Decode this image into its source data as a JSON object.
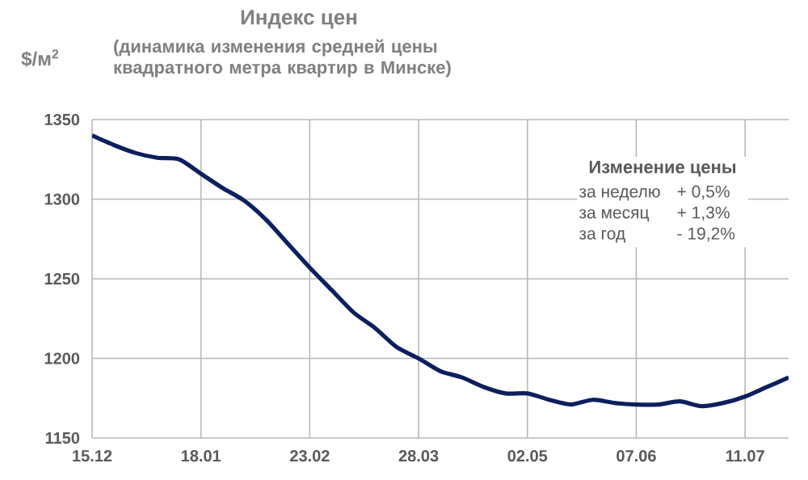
{
  "chart_data": {
    "type": "line",
    "title": "Индекс цен",
    "subtitle": "(динамика изменения средней цены квадратного метра квартир в Минске)",
    "ylabel": "$/м$^{2}$",
    "categories": [
      "15.12",
      null,
      null,
      null,
      null,
      "18.01",
      null,
      null,
      null,
      null,
      "23.02",
      null,
      null,
      null,
      null,
      "28.03",
      null,
      null,
      null,
      null,
      "02.05",
      null,
      null,
      null,
      null,
      "07.06",
      null,
      null,
      null,
      null,
      "11.07",
      null,
      null
    ],
    "values": [
      1340,
      1334,
      1329,
      1326,
      1325,
      1316,
      1307,
      1299,
      1287,
      1272,
      1257,
      1243,
      1229,
      1219,
      1207,
      1200,
      1192,
      1188,
      1182,
      1178,
      1178,
      1174,
      1171,
      1174,
      1172,
      1171,
      1171,
      1173,
      1170,
      1172,
      1176,
      1182,
      1188
    ],
    "color": "#0c1f5e",
    "ylim": [
      1150,
      1350
    ],
    "yticks": [
      1150,
      1200,
      1250,
      1300,
      1350
    ],
    "grid": true,
    "annotations": [
      "Изменение цены",
      "за неделю",
      "+ 0,5%",
      "за месяц",
      "+ 1,3%",
      "за год",
      "- 19,2%"
    ]
  }
}
